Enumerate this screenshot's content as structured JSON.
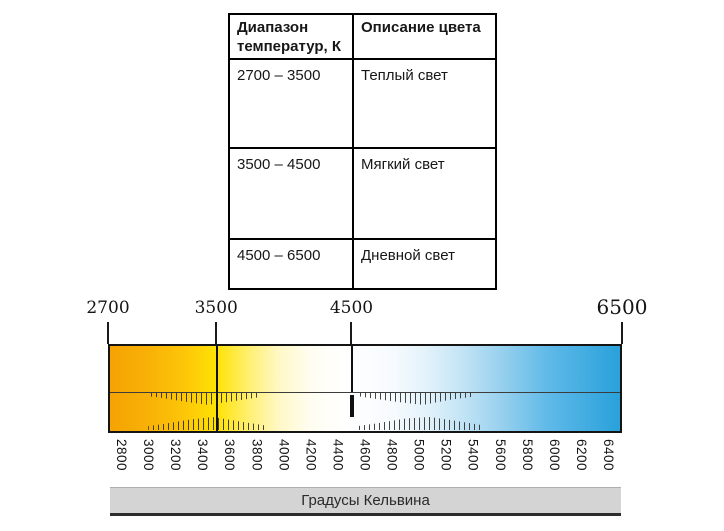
{
  "table": {
    "headers": [
      "Диапазон температур, К",
      "Описание цвета"
    ],
    "rows": [
      {
        "range": "2700 – 3500",
        "description": "Теплый свет"
      },
      {
        "range": "3500 – 4500",
        "description": "Мягкий свет"
      },
      {
        "range": "4500 – 6500",
        "description": "Дневной свет"
      }
    ]
  },
  "scale": {
    "min": 2700,
    "max": 6500,
    "top_labels": [
      2700,
      3500,
      4500,
      6500
    ],
    "dividers": [
      {
        "value": 3500,
        "extent": "full"
      },
      {
        "value": 4500,
        "extent": "upper"
      }
    ],
    "emphasis_mark": 4500,
    "bottom_labels": [
      2800,
      3000,
      3200,
      3400,
      3600,
      3800,
      4000,
      4200,
      4400,
      4600,
      4800,
      5000,
      5200,
      5400,
      5600,
      5800,
      6000,
      6200,
      6400
    ],
    "axis_title": "Градусы Кельвина",
    "gradient_stops": [
      {
        "pos": 0,
        "color": "#F5A303"
      },
      {
        "pos": 7,
        "color": "#F8B006"
      },
      {
        "pos": 14,
        "color": "#FCC408"
      },
      {
        "pos": 21,
        "color": "#FFE205"
      },
      {
        "pos": 27,
        "color": "#FFEF6E"
      },
      {
        "pos": 33,
        "color": "#FFF8C4"
      },
      {
        "pos": 39,
        "color": "#FFFDF0"
      },
      {
        "pos": 46,
        "color": "#FFFFFF"
      },
      {
        "pos": 55,
        "color": "#F7FBFE"
      },
      {
        "pos": 62,
        "color": "#E3F2FA"
      },
      {
        "pos": 69,
        "color": "#C3E4F5"
      },
      {
        "pos": 77,
        "color": "#96D0EE"
      },
      {
        "pos": 86,
        "color": "#5FB9E8"
      },
      {
        "pos": 100,
        "color": "#29A1DB"
      }
    ]
  }
}
